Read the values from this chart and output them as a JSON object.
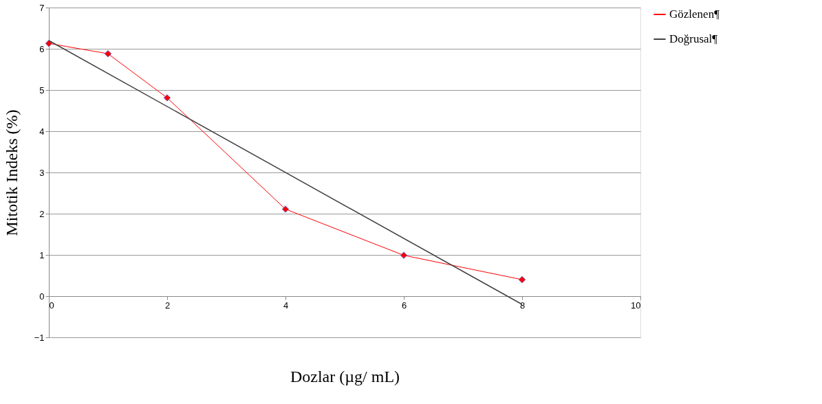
{
  "chart_data": {
    "type": "line",
    "xlabel": "Dozlar (µg/ mL)",
    "ylabel": "Mitotik Indeks (%)",
    "xlim": [
      0,
      10
    ],
    "xticks": [
      0,
      2,
      4,
      6,
      8,
      10
    ],
    "ylim": [
      -1,
      7
    ],
    "yticks": [
      -1,
      0,
      1,
      2,
      3,
      4,
      5,
      6,
      7
    ],
    "grid": "y",
    "legend": "right",
    "series": [
      {
        "name": "Gözlenen¶",
        "color": "#ff0000",
        "marker": "diamond",
        "x": [
          0,
          1,
          2,
          4,
          6,
          8
        ],
        "values": [
          6.13,
          5.88,
          4.81,
          2.11,
          0.99,
          0.4
        ]
      },
      {
        "name": "Doğrusal¶",
        "color": "#404040",
        "marker": "none",
        "x": [
          0,
          8
        ],
        "values": [
          6.2,
          -0.2
        ]
      }
    ]
  }
}
